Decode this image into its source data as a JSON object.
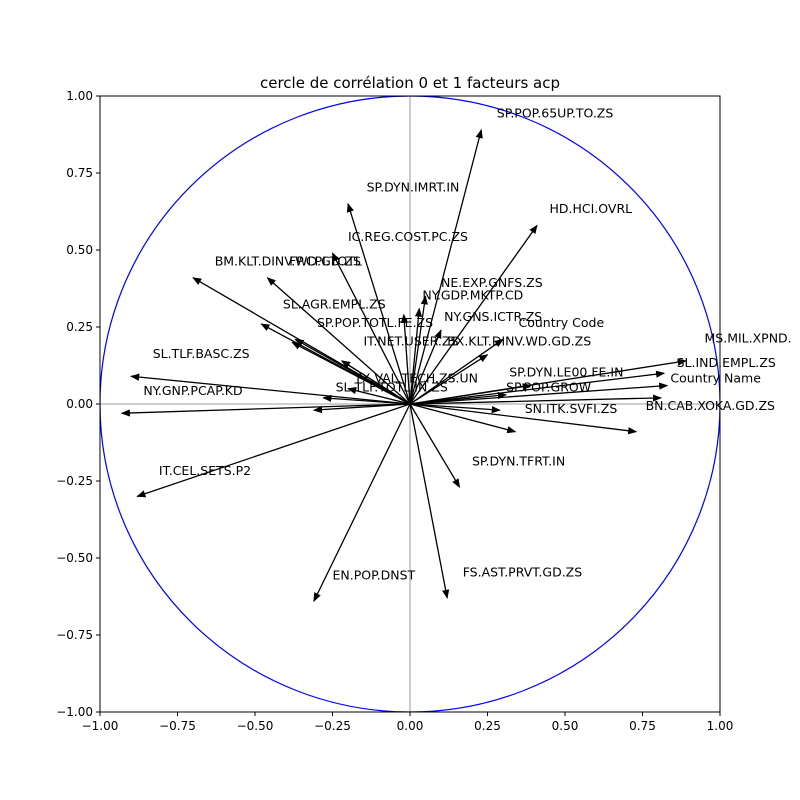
{
  "chart_data": {
    "type": "scatter",
    "title": "cercle de corrélation 0 et 1 facteurs acp",
    "xlabel": "",
    "ylabel": "",
    "xlim": [
      -1.0,
      1.0
    ],
    "ylim": [
      -1.0,
      1.0
    ],
    "xticks": [
      -1.0,
      -0.75,
      -0.5,
      -0.25,
      0.0,
      0.25,
      0.5,
      0.75,
      1.0
    ],
    "yticks": [
      -1.0,
      -0.75,
      -0.5,
      -0.25,
      0.0,
      0.25,
      0.5,
      0.75,
      1.0
    ],
    "xtick_labels": [
      "−1.00",
      "−0.75",
      "−0.50",
      "−0.25",
      "0.00",
      "0.25",
      "0.50",
      "0.75",
      "1.00"
    ],
    "ytick_labels": [
      "−1.00",
      "−0.75",
      "−0.50",
      "−0.25",
      "0.00",
      "0.25",
      "0.50",
      "0.75",
      "1.00"
    ],
    "grid": false,
    "unit_circle": true,
    "circle_color": "#0000ff",
    "axis_line_color": "#b0b0b0",
    "arrow_color": "#000000",
    "vectors": [
      {
        "label": "SP.POP.65UP.TO.ZS",
        "x": 0.23,
        "y": 0.89,
        "lx": 0.28,
        "ly": 0.93
      },
      {
        "label": "SP.DYN.IMRT.IN",
        "x": -0.2,
        "y": 0.65,
        "lx": -0.14,
        "ly": 0.69
      },
      {
        "label": "HD.HCI.OVRL",
        "x": 0.41,
        "y": 0.58,
        "lx": 0.45,
        "ly": 0.62
      },
      {
        "label": "IC.REG.COST.PC.ZS",
        "x": -0.25,
        "y": 0.49,
        "lx": -0.2,
        "ly": 0.53
      },
      {
        "label": "BM.KLT.DINV.WD.GD.ZS",
        "x": -0.7,
        "y": 0.41,
        "lx": -0.63,
        "ly": 0.45
      },
      {
        "label": "FP.CPI.TOTL",
        "x": -0.46,
        "y": 0.41,
        "lx": -0.39,
        "ly": 0.45
      },
      {
        "label": "NE.EXP.GNFS.ZS",
        "x": 0.05,
        "y": 0.35,
        "lx": 0.1,
        "ly": 0.38
      },
      {
        "label": "NY.GDP.MKTP.CD",
        "x": 0.03,
        "y": 0.31,
        "lx": 0.04,
        "ly": 0.34
      },
      {
        "label": "SL.AGR.EMPL.ZS",
        "x": -0.48,
        "y": 0.26,
        "lx": -0.41,
        "ly": 0.31
      },
      {
        "label": "NY.GNS.ICTR.ZS",
        "x": 0.1,
        "y": 0.24,
        "lx": 0.11,
        "ly": 0.27
      },
      {
        "label": "SP.POP.TOTL.FE.ZS",
        "x": -0.37,
        "y": 0.21,
        "lx": -0.3,
        "ly": 0.25
      },
      {
        "label": "Country Code",
        "x": 0.3,
        "y": 0.21,
        "lx": 0.35,
        "ly": 0.25
      },
      {
        "label": "IT.NET.USER.ZS",
        "x": -0.22,
        "y": 0.14,
        "lx": -0.15,
        "ly": 0.19
      },
      {
        "label": "BX.KLT.DINV.WD.GD.ZS",
        "x": 0.25,
        "y": 0.16,
        "lx": 0.12,
        "ly": 0.19
      },
      {
        "label": "MS.MIL.XPND.",
        "x": 0.89,
        "y": 0.14,
        "lx": 0.95,
        "ly": 0.2
      },
      {
        "label": "SL.TLF.BASC.ZS",
        "x": -0.9,
        "y": 0.09,
        "lx": -0.83,
        "ly": 0.15
      },
      {
        "label": "SL.IND.EMPL.ZS",
        "x": 0.82,
        "y": 0.1,
        "lx": 0.86,
        "ly": 0.12
      },
      {
        "label": "SP.DYN.LE00.FE.IN",
        "x": 0.39,
        "y": 0.06,
        "lx": 0.32,
        "ly": 0.09
      },
      {
        "label": "TX.VAL.TECH.ZS.UN",
        "x": -0.2,
        "y": 0.05,
        "lx": -0.18,
        "ly": 0.07
      },
      {
        "label": "Country Name",
        "x": 0.83,
        "y": 0.06,
        "lx": 0.84,
        "ly": 0.07
      },
      {
        "label": "SP.POP.GROW",
        "x": 0.31,
        "y": 0.03,
        "lx": 0.31,
        "ly": 0.04
      },
      {
        "label": "SL.TLF.TOTL.IN.ZS",
        "x": -0.28,
        "y": 0.02,
        "lx": -0.24,
        "ly": 0.04
      },
      {
        "label": "NY.GNP.PCAP.KD",
        "x": -0.93,
        "y": -0.03,
        "lx": -0.86,
        "ly": 0.03
      },
      {
        "label": "BN.CAB.XOKA.GD.ZS",
        "x": 0.73,
        "y": -0.09,
        "lx": 0.76,
        "ly": -0.02
      },
      {
        "label": "SN.ITK.SVFI.ZS",
        "x": 0.34,
        "y": -0.09,
        "lx": 0.37,
        "ly": -0.03
      },
      {
        "label": "",
        "x": 0.81,
        "y": 0.02,
        "lx": 0,
        "ly": 0
      },
      {
        "label": "",
        "x": 0.29,
        "y": -0.02,
        "lx": 0,
        "ly": 0
      },
      {
        "label": "",
        "x": -0.31,
        "y": -0.02,
        "lx": 0,
        "ly": 0
      },
      {
        "label": "",
        "x": -0.38,
        "y": 0.2,
        "lx": 0,
        "ly": 0
      },
      {
        "label": "",
        "x": -0.02,
        "y": 0.29,
        "lx": 0,
        "ly": 0
      },
      {
        "label": "",
        "x": -0.22,
        "y": 0.14,
        "lx": 0,
        "ly": 0
      },
      {
        "label": "SP.DYN.TFRT.IN",
        "x": 0.16,
        "y": -0.27,
        "lx": 0.2,
        "ly": -0.2
      },
      {
        "label": "IT.CEL.SETS.P2",
        "x": -0.88,
        "y": -0.3,
        "lx": -0.81,
        "ly": -0.23
      },
      {
        "label": "EN.POP.DNST",
        "x": -0.31,
        "y": -0.64,
        "lx": -0.25,
        "ly": -0.57
      },
      {
        "label": "FS.AST.PRVT.GD.ZS",
        "x": 0.12,
        "y": -0.63,
        "lx": 0.17,
        "ly": -0.56
      }
    ]
  }
}
